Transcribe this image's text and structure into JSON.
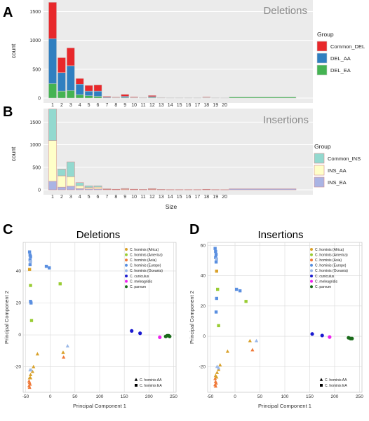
{
  "chart_data": [
    {
      "panel": "A",
      "type": "bar",
      "stacked": true,
      "title": "Deletions",
      "ylabel": "count",
      "xlabel": "",
      "ylim": [
        0,
        1700
      ],
      "yticks": [
        0,
        500,
        1000,
        1500
      ],
      "categories": [
        "1",
        "2",
        "3",
        "4",
        "5",
        "6",
        "7",
        "8",
        "9",
        "10",
        "11",
        "12",
        "13",
        "14",
        "15",
        "16",
        "17",
        "18",
        "19",
        "20"
      ],
      "legend_title": "Group",
      "legend_position": "right",
      "series": [
        {
          "name": "DEL_EA",
          "color": "#44b352",
          "values": [
            250,
            120,
            130,
            60,
            40,
            30,
            5,
            3,
            10,
            3,
            2,
            10,
            2,
            1,
            1,
            1,
            1,
            3,
            1,
            1
          ]
        },
        {
          "name": "DEL_AA",
          "color": "#2f7fc0",
          "values": [
            780,
            320,
            430,
            180,
            80,
            90,
            10,
            5,
            20,
            5,
            3,
            15,
            3,
            2,
            2,
            2,
            2,
            6,
            2,
            1
          ]
        },
        {
          "name": "Common_DEL",
          "color": "#e8282b",
          "values": [
            630,
            260,
            310,
            100,
            100,
            110,
            15,
            10,
            35,
            12,
            5,
            20,
            5,
            3,
            3,
            3,
            3,
            10,
            3,
            2
          ]
        }
      ],
      "tail_length": 30
    },
    {
      "panel": "B",
      "type": "bar",
      "stacked": true,
      "title": "Insertions",
      "ylabel": "count",
      "xlabel": "Size",
      "ylim": [
        0,
        1800
      ],
      "yticks": [
        0,
        500,
        1000,
        1500
      ],
      "categories": [
        "1",
        "2",
        "3",
        "4",
        "5",
        "6",
        "7",
        "8",
        "9",
        "10",
        "11",
        "12",
        "13",
        "14",
        "15",
        "16",
        "17",
        "18",
        "19",
        "20"
      ],
      "legend_title": "Group",
      "legend_position": "right",
      "series": [
        {
          "name": "INS_EA",
          "color": "#aab4e4",
          "values": [
            190,
            60,
            80,
            30,
            20,
            20,
            5,
            3,
            8,
            3,
            2,
            8,
            2,
            1,
            1,
            1,
            1,
            2,
            1,
            1
          ]
        },
        {
          "name": "INS_AA",
          "color": "#ffffc8",
          "values": [
            900,
            250,
            210,
            60,
            30,
            40,
            8,
            5,
            12,
            5,
            3,
            10,
            3,
            2,
            2,
            2,
            2,
            4,
            2,
            1
          ]
        },
        {
          "name": "Common_INS",
          "color": "#93d9cf",
          "values": [
            700,
            150,
            330,
            70,
            40,
            30,
            10,
            5,
            10,
            6,
            3,
            10,
            3,
            2,
            2,
            2,
            2,
            6,
            2,
            1
          ]
        }
      ],
      "tail_length": 30
    },
    {
      "panel": "C",
      "type": "scatter",
      "title": "Deletions",
      "xlabel": "Principal Component 1",
      "ylabel": "Principal Component 2",
      "xlim": [
        -55,
        255
      ],
      "ylim": [
        -36,
        58
      ],
      "xticks": [
        -50,
        0,
        50,
        100,
        150,
        200,
        250
      ],
      "yticks": [
        -20,
        0,
        20,
        40
      ],
      "legend": [
        {
          "name": "C. hominis (Africa)",
          "color": "#d9a12a"
        },
        {
          "name": "C. hominis (America)",
          "color": "#99cc33"
        },
        {
          "name": "C. hominis (Asia)",
          "color": "#f07a3a"
        },
        {
          "name": "C. hominis (Europe)",
          "color": "#5a8fe0"
        },
        {
          "name": "C. hominis (Oceania)",
          "color": "#9ab8e8"
        },
        {
          "name": "C. cuniculus",
          "color": "#1a1ad0"
        },
        {
          "name": "C. meleagridis",
          "color": "#ee22ee"
        },
        {
          "name": "C. parvum",
          "color": "#1a6b1a"
        }
      ],
      "shape_legend": [
        {
          "name": "C. hominis AA",
          "shape": "triangle"
        },
        {
          "name": "C. hominis EA",
          "shape": "square"
        }
      ],
      "points": [
        {
          "x": -42,
          "y": 52,
          "c": 3,
          "s": "square"
        },
        {
          "x": -41,
          "y": 50,
          "c": 3,
          "s": "square"
        },
        {
          "x": -40,
          "y": 49,
          "c": 3,
          "s": "square"
        },
        {
          "x": -41,
          "y": 47,
          "c": 3,
          "s": "square"
        },
        {
          "x": -40,
          "y": 46,
          "c": 4,
          "s": "square"
        },
        {
          "x": -41,
          "y": 44,
          "c": 3,
          "s": "square"
        },
        {
          "x": -42,
          "y": 41,
          "c": 0,
          "s": "square"
        },
        {
          "x": -8,
          "y": 43,
          "c": 3,
          "s": "square"
        },
        {
          "x": -2,
          "y": 42,
          "c": 3,
          "s": "square"
        },
        {
          "x": 20,
          "y": 32,
          "c": 1,
          "s": "square"
        },
        {
          "x": -40,
          "y": 31,
          "c": 1,
          "s": "square"
        },
        {
          "x": -40,
          "y": 21,
          "c": 3,
          "s": "square"
        },
        {
          "x": -39,
          "y": 20,
          "c": 3,
          "s": "square"
        },
        {
          "x": -38,
          "y": 9,
          "c": 1,
          "s": "square"
        },
        {
          "x": -26,
          "y": -12,
          "c": 0,
          "s": "triangle"
        },
        {
          "x": -34,
          "y": -20,
          "c": 0,
          "s": "triangle"
        },
        {
          "x": -36,
          "y": -23,
          "c": 0,
          "s": "triangle"
        },
        {
          "x": -40,
          "y": -25,
          "c": 0,
          "s": "triangle"
        },
        {
          "x": -42,
          "y": -27,
          "c": 0,
          "s": "triangle"
        },
        {
          "x": -41,
          "y": -22,
          "c": 4,
          "s": "triangle"
        },
        {
          "x": -39,
          "y": -22,
          "c": 4,
          "s": "triangle"
        },
        {
          "x": 35,
          "y": -7,
          "c": 4,
          "s": "triangle"
        },
        {
          "x": 26,
          "y": -11,
          "c": 0,
          "s": "triangle"
        },
        {
          "x": 27,
          "y": -14,
          "c": 2,
          "s": "triangle"
        },
        {
          "x": -43,
          "y": -29,
          "c": 2,
          "s": "triangle"
        },
        {
          "x": -42,
          "y": -30,
          "c": 2,
          "s": "triangle"
        },
        {
          "x": -41,
          "y": -31,
          "c": 2,
          "s": "triangle"
        },
        {
          "x": -43,
          "y": -32,
          "c": 2,
          "s": "triangle"
        },
        {
          "x": -42,
          "y": -33,
          "c": 2,
          "s": "triangle"
        },
        {
          "x": -40,
          "y": -27,
          "c": 0,
          "s": "triangle"
        },
        {
          "x": 165,
          "y": 2.5,
          "c": 5,
          "s": "circle"
        },
        {
          "x": 182,
          "y": 1,
          "c": 5,
          "s": "circle"
        },
        {
          "x": 222,
          "y": -1.5,
          "c": 6,
          "s": "circle"
        },
        {
          "x": 234,
          "y": -1,
          "c": 7,
          "s": "circle"
        },
        {
          "x": 237,
          "y": -0.5,
          "c": 7,
          "s": "circle"
        },
        {
          "x": 240,
          "y": -0.5,
          "c": 7,
          "s": "circle"
        },
        {
          "x": 242,
          "y": -1,
          "c": 7,
          "s": "circle"
        }
      ]
    },
    {
      "panel": "D",
      "type": "scatter",
      "title": "Insertions",
      "xlabel": "Principal Component 1",
      "ylabel": "Principal Component 2",
      "xlim": [
        -55,
        255
      ],
      "ylim": [
        -37,
        62
      ],
      "xticks": [
        -50,
        0,
        50,
        100,
        150,
        200,
        250
      ],
      "yticks": [
        -20,
        0,
        20,
        40,
        60
      ],
      "legend": [
        {
          "name": "C. hominis (Africa)",
          "color": "#d9a12a"
        },
        {
          "name": "C. hominis (America)",
          "color": "#99cc33"
        },
        {
          "name": "C. hominis (Asia)",
          "color": "#f07a3a"
        },
        {
          "name": "C. hominis (Europe)",
          "color": "#5a8fe0"
        },
        {
          "name": "C. hominis (Oceania)",
          "color": "#9ab8e8"
        },
        {
          "name": "C. cuniculus",
          "color": "#1a1ad0"
        },
        {
          "name": "C. meleagridis",
          "color": "#ee22ee"
        },
        {
          "name": "C. parvum",
          "color": "#1a6b1a"
        }
      ],
      "shape_legend": [
        {
          "name": "C. hominis AA",
          "shape": "triangle"
        },
        {
          "name": "C. hominis EA",
          "shape": "square"
        }
      ],
      "points": [
        {
          "x": -40,
          "y": 58,
          "c": 3,
          "s": "square"
        },
        {
          "x": -39,
          "y": 56,
          "c": 3,
          "s": "square"
        },
        {
          "x": -38,
          "y": 54,
          "c": 3,
          "s": "square"
        },
        {
          "x": -39,
          "y": 52,
          "c": 3,
          "s": "square"
        },
        {
          "x": -37,
          "y": 51,
          "c": 4,
          "s": "square"
        },
        {
          "x": -38,
          "y": 49,
          "c": 3,
          "s": "square"
        },
        {
          "x": -37,
          "y": 43,
          "c": 0,
          "s": "square"
        },
        {
          "x": 3,
          "y": 31,
          "c": 3,
          "s": "square"
        },
        {
          "x": 10,
          "y": 30,
          "c": 3,
          "s": "square"
        },
        {
          "x": 22,
          "y": 23,
          "c": 1,
          "s": "square"
        },
        {
          "x": -35,
          "y": 31,
          "c": 1,
          "s": "square"
        },
        {
          "x": -37,
          "y": 25,
          "c": 3,
          "s": "square"
        },
        {
          "x": -38,
          "y": 16,
          "c": 3,
          "s": "square"
        },
        {
          "x": -33,
          "y": 7,
          "c": 1,
          "s": "square"
        },
        {
          "x": -15,
          "y": -10,
          "c": 0,
          "s": "triangle"
        },
        {
          "x": -30,
          "y": -19,
          "c": 0,
          "s": "triangle"
        },
        {
          "x": -33,
          "y": -22,
          "c": 0,
          "s": "triangle"
        },
        {
          "x": -36,
          "y": -24,
          "c": 0,
          "s": "triangle"
        },
        {
          "x": -39,
          "y": -26,
          "c": 0,
          "s": "triangle"
        },
        {
          "x": -36,
          "y": -20,
          "c": 4,
          "s": "triangle"
        },
        {
          "x": -33,
          "y": -21,
          "c": 4,
          "s": "triangle"
        },
        {
          "x": 43,
          "y": -3,
          "c": 4,
          "s": "triangle"
        },
        {
          "x": 30,
          "y": -3,
          "c": 0,
          "s": "triangle"
        },
        {
          "x": 35,
          "y": -9,
          "c": 2,
          "s": "triangle"
        },
        {
          "x": -40,
          "y": -28,
          "c": 2,
          "s": "triangle"
        },
        {
          "x": -39,
          "y": -30,
          "c": 2,
          "s": "triangle"
        },
        {
          "x": -38,
          "y": -31,
          "c": 2,
          "s": "triangle"
        },
        {
          "x": -40,
          "y": -32,
          "c": 2,
          "s": "triangle"
        },
        {
          "x": -39,
          "y": -33,
          "c": 2,
          "s": "triangle"
        },
        {
          "x": -37,
          "y": -27,
          "c": 0,
          "s": "triangle"
        },
        {
          "x": 155,
          "y": 1.5,
          "c": 5,
          "s": "circle"
        },
        {
          "x": 175,
          "y": 0.5,
          "c": 5,
          "s": "circle"
        },
        {
          "x": 190,
          "y": -0.5,
          "c": 6,
          "s": "circle"
        },
        {
          "x": 228,
          "y": -1,
          "c": 7,
          "s": "circle"
        },
        {
          "x": 232,
          "y": -1.5,
          "c": 7,
          "s": "circle"
        },
        {
          "x": 235,
          "y": -1.5,
          "c": 7,
          "s": "circle"
        }
      ]
    }
  ]
}
